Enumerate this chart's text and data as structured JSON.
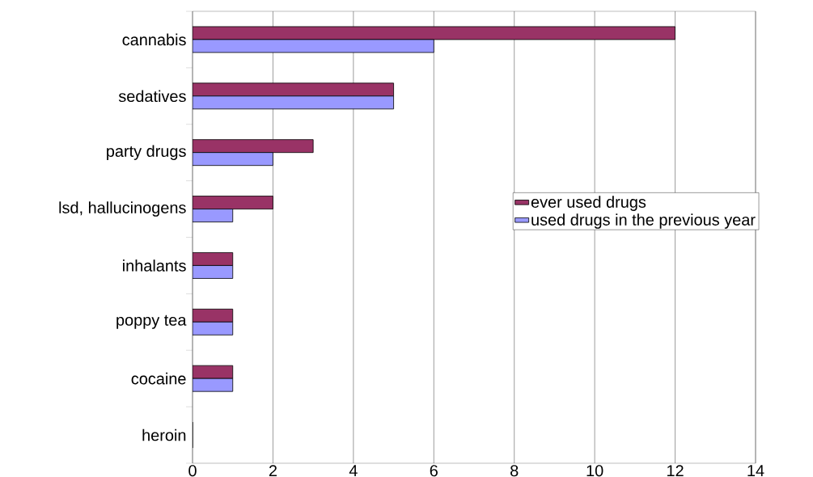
{
  "chart_data": {
    "type": "bar",
    "orientation": "horizontal",
    "categories": [
      "cannabis",
      "sedatives",
      "party drugs",
      "lsd, hallucinogens",
      "inhalants",
      "poppy tea",
      "cocaine",
      "heroin"
    ],
    "series": [
      {
        "name": "ever used drugs",
        "color": "#993366",
        "values": [
          12,
          5,
          3,
          2,
          1,
          1,
          1,
          0
        ]
      },
      {
        "name": "used drugs in the previous year",
        "color": "#9999ff",
        "values": [
          6,
          5,
          2,
          1,
          1,
          1,
          1,
          0
        ]
      }
    ],
    "xlim": [
      0,
      14
    ],
    "xticks": [
      0,
      2,
      4,
      6,
      8,
      10,
      12,
      14
    ],
    "grid": "x",
    "legend": "right"
  }
}
